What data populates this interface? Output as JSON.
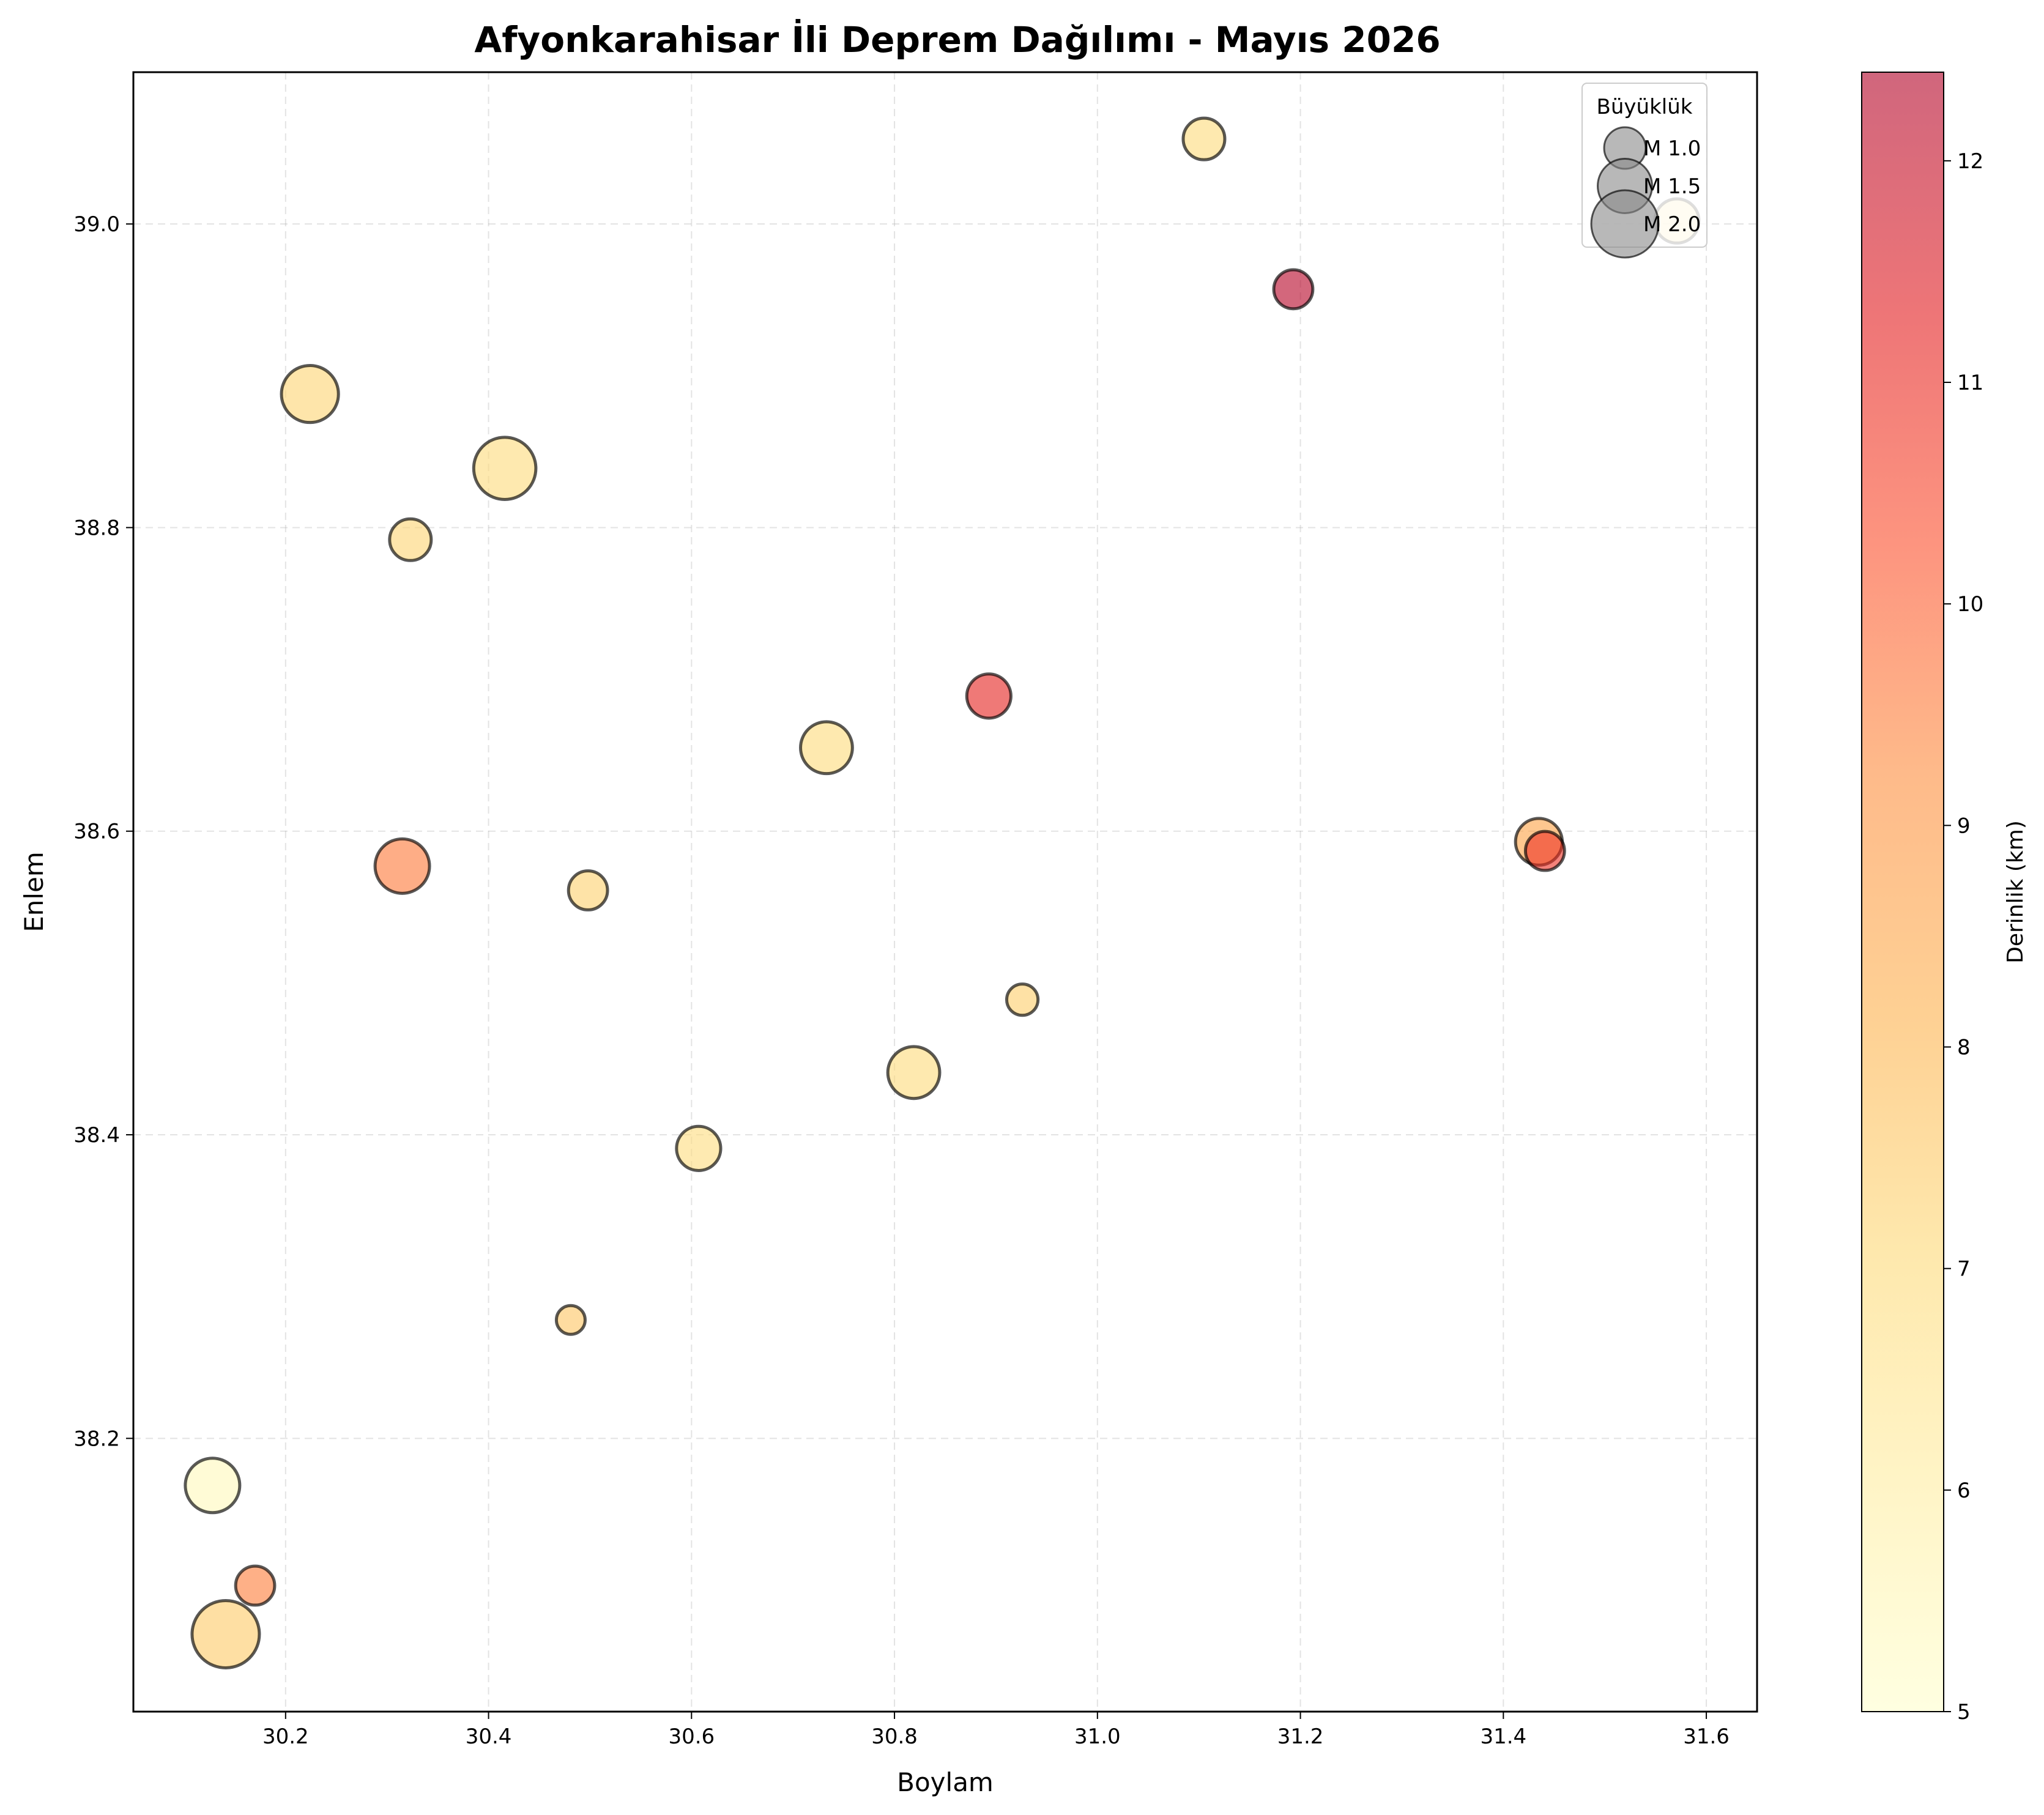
{
  "chart_data": {
    "type": "scatter",
    "title": "Afyonkarahisar İli Deprem Dağılımı - Mayıs 2026",
    "xlabel": "Boylam",
    "ylabel": "Enlem",
    "xlim": [
      30.05,
      31.65
    ],
    "ylim": [
      38.02,
      39.1
    ],
    "xticks": [
      "30.2",
      "30.4",
      "30.6",
      "30.8",
      "31.0",
      "31.2",
      "31.4",
      "31.6"
    ],
    "yticks": [
      "38.2",
      "38.4",
      "38.6",
      "38.8",
      "39.0"
    ],
    "grid": true,
    "colorbar": {
      "label": "Derinlik (km)",
      "range": [
        5,
        12.4
      ],
      "ticks": [
        "5",
        "6",
        "7",
        "8",
        "9",
        "10",
        "11",
        "12"
      ],
      "colormap": "YlOrRd"
    },
    "legend": {
      "title": "Büyüklük",
      "location": "top-right",
      "entries": [
        {
          "label": "M 1.0",
          "magnitude": 1.0
        },
        {
          "label": "M 1.5",
          "magnitude": 1.5
        },
        {
          "label": "M 2.0",
          "magnitude": 2.0
        }
      ]
    },
    "points": [
      {
        "lon": 31.105,
        "lat": 39.056,
        "mag": 1.0,
        "depth": 7.0
      },
      {
        "lon": 31.571,
        "lat": 39.002,
        "mag": 1.1,
        "depth": 6.3
      },
      {
        "lon": 31.193,
        "lat": 38.957,
        "mag": 0.9,
        "depth": 12.3
      },
      {
        "lon": 30.224,
        "lat": 38.888,
        "mag": 1.6,
        "depth": 7.2
      },
      {
        "lon": 30.416,
        "lat": 38.839,
        "mag": 1.8,
        "depth": 7.0
      },
      {
        "lon": 30.323,
        "lat": 38.792,
        "mag": 1.0,
        "depth": 7.2
      },
      {
        "lon": 30.893,
        "lat": 38.689,
        "mag": 1.1,
        "depth": 11.2
      },
      {
        "lon": 30.733,
        "lat": 38.655,
        "mag": 1.4,
        "depth": 7.0
      },
      {
        "lon": 31.435,
        "lat": 38.593,
        "mag": 1.2,
        "depth": 8.6
      },
      {
        "lon": 31.441,
        "lat": 38.587,
        "mag": 0.9,
        "depth": 10.9
      },
      {
        "lon": 30.315,
        "lat": 38.577,
        "mag": 1.5,
        "depth": 9.6
      },
      {
        "lon": 30.498,
        "lat": 38.561,
        "mag": 0.9,
        "depth": 7.3
      },
      {
        "lon": 30.926,
        "lat": 38.489,
        "mag": 0.6,
        "depth": 7.4
      },
      {
        "lon": 30.819,
        "lat": 38.441,
        "mag": 1.4,
        "depth": 7.0
      },
      {
        "lon": 30.607,
        "lat": 38.391,
        "mag": 1.1,
        "depth": 6.9
      },
      {
        "lon": 30.481,
        "lat": 38.278,
        "mag": 0.5,
        "depth": 7.6
      },
      {
        "lon": 30.128,
        "lat": 38.169,
        "mag": 1.5,
        "depth": 5.4
      },
      {
        "lon": 30.17,
        "lat": 38.103,
        "mag": 0.9,
        "depth": 9.5
      },
      {
        "lon": 30.141,
        "lat": 38.071,
        "mag": 2.0,
        "depth": 7.5
      }
    ]
  }
}
